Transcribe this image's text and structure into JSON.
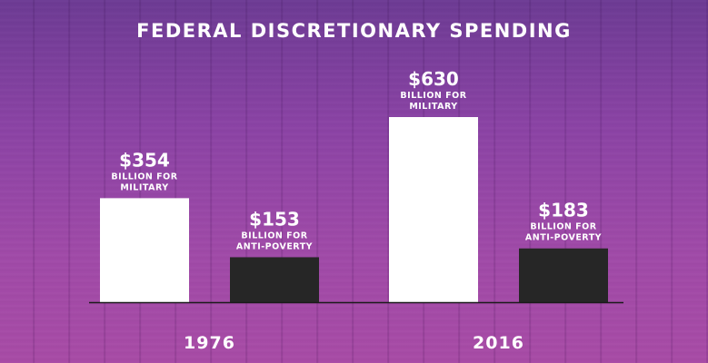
{
  "title": "FEDERAL DISCRETIONARY SPENDING",
  "chart_data": {
    "type": "bar",
    "title": "FEDERAL DISCRETIONARY SPENDING",
    "categories": [
      "1976",
      "2016"
    ],
    "series": [
      {
        "values": [
          354,
          630
        ],
        "color": "#ffffff"
      },
      {
        "values": [
          153,
          183
        ],
        "color": "#262626"
      }
    ],
    "ylim": [
      0,
      700
    ],
    "grid": false,
    "bar_labels": [
      [
        {
          "amount": "$354",
          "line1": "BILLION FOR",
          "line2": "MILITARY"
        },
        {
          "amount": "$630",
          "line1": "BILLION FOR",
          "line2": "MILITARY"
        }
      ],
      [
        {
          "amount": "$153",
          "line1": "BILLION FOR",
          "line2": "ANTI-POVERTY"
        },
        {
          "amount": "$183",
          "line1": "BILLION FOR",
          "line2": "ANTI-POVERTY"
        }
      ]
    ]
  }
}
